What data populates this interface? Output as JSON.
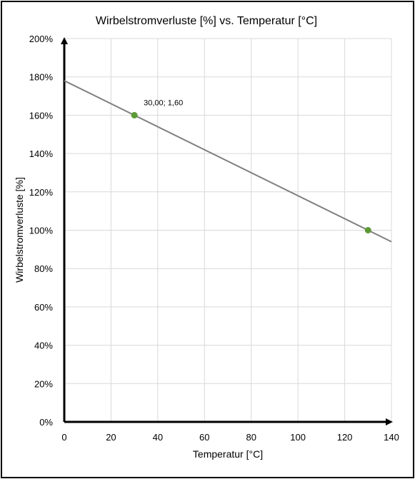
{
  "chart_data": {
    "type": "line",
    "title": "Wirbelstromverluste [%] vs. Temperatur [°C]",
    "xlabel": "Temperatur [°C]",
    "ylabel": "Wirbelstromverluste [%]",
    "xlim": [
      0,
      140
    ],
    "ylim": [
      0,
      2
    ],
    "x_ticks": [
      0,
      20,
      40,
      60,
      80,
      100,
      120,
      140
    ],
    "x_tick_labels": [
      "0",
      "20",
      "40",
      "60",
      "80",
      "100",
      "120",
      "140"
    ],
    "y_ticks": [
      0,
      0.2,
      0.4,
      0.6,
      0.8,
      1.0,
      1.2,
      1.4,
      1.6,
      1.8,
      2.0
    ],
    "y_tick_labels": [
      "0%",
      "20%",
      "40%",
      "60%",
      "80%",
      "100%",
      "120%",
      "140%",
      "160%",
      "180%",
      "200%"
    ],
    "grid": true,
    "series": [
      {
        "kind": "line",
        "x": [
          0,
          140
        ],
        "y": [
          1.78,
          0.94
        ],
        "color": "#808080"
      },
      {
        "kind": "scatter",
        "x": [
          30,
          130
        ],
        "y": [
          1.6,
          1.0
        ],
        "color": "#5b9a35"
      }
    ],
    "annotations": [
      {
        "text": "30,00; 1,60",
        "x": 30,
        "y": 1.6
      }
    ]
  }
}
